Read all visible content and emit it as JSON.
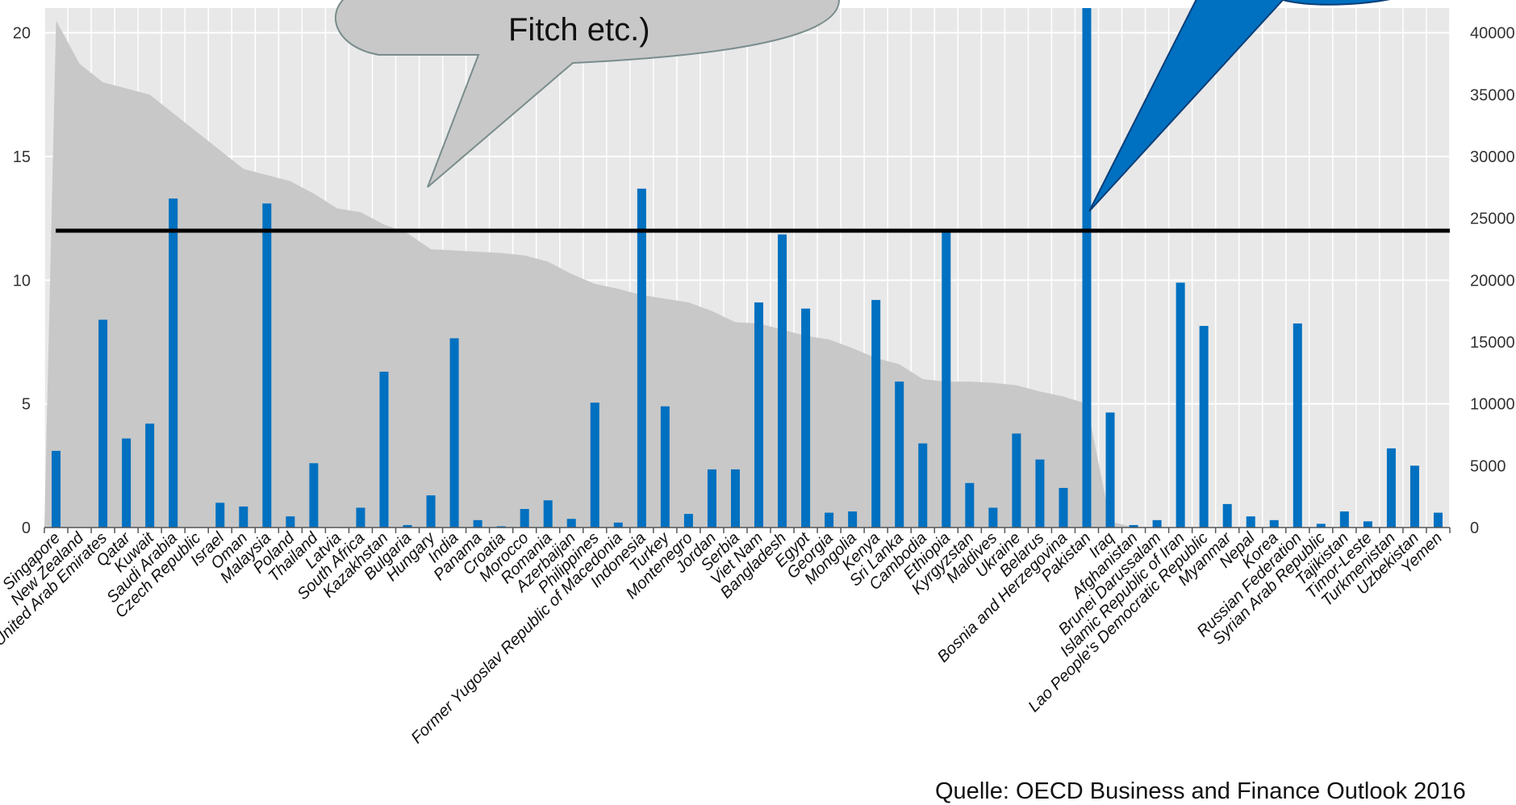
{
  "chart_data": {
    "type": "bar",
    "left_axis": {
      "ticks": [
        0,
        5,
        10,
        15,
        20
      ],
      "ylim": [
        0,
        21
      ]
    },
    "right_axis": {
      "ticks": [
        0,
        5000,
        10000,
        15000,
        20000,
        25000,
        30000,
        35000,
        40000
      ],
      "ylim": [
        0,
        42000
      ]
    },
    "threshold_line": 12,
    "categories": [
      "Singapore",
      "New Zealand",
      "United Arab Emirates",
      "Qatar",
      "Kuwait",
      "Saudi Arabia",
      "Czech Republic",
      "Israel",
      "Oman",
      "Malaysia",
      "Poland",
      "Thailand",
      "Latvia",
      "South Africa",
      "Kazakhstan",
      "Bulgaria",
      "Hungary",
      "India",
      "Panama",
      "Croatia",
      "Morocco",
      "Romania",
      "Azerbaijan",
      "Philippines",
      "Former Yugoslav Republic of Macedonia",
      "Indonesia",
      "Turkey",
      "Montenegro",
      "Jordan",
      "Serbia",
      "Viet Nam",
      "Bangladesh",
      "Egypt",
      "Georgia",
      "Mongolia",
      "Kenya",
      "Sri Lanka",
      "Cambodia",
      "Ethiopia",
      "Kyrgyzstan",
      "Maldives",
      "Ukraine",
      "Belarus",
      "Bosnia and Herzegovina",
      "Pakistan",
      "Iraq",
      "Afghanistan",
      "Brunei Darussalam",
      "Islamic Republic of Iran",
      "Lao People's Democratic Republic",
      "Myanmar",
      "Nepal",
      "Korea",
      "Russian Federation",
      "Syrian Arab Republic",
      "Tajikistan",
      "Timor-Leste",
      "Turkmenistan",
      "Uzbekistan",
      "Yemen"
    ],
    "series": [
      {
        "axis": "left",
        "color": "#0070C0",
        "values": [
          3.1,
          0.0,
          8.4,
          3.6,
          4.2,
          13.3,
          0.0,
          1.0,
          0.85,
          13.1,
          0.45,
          2.6,
          0.0,
          0.8,
          6.3,
          0.1,
          1.3,
          7.65,
          0.3,
          0.05,
          0.75,
          1.1,
          0.35,
          5.05,
          0.2,
          13.7,
          4.9,
          0.55,
          2.35,
          2.35,
          9.1,
          11.85,
          8.85,
          0.6,
          0.65,
          9.2,
          5.9,
          3.4,
          12.0,
          1.8,
          0.8,
          3.8,
          2.75,
          1.6,
          21.0,
          4.65,
          0.1,
          0.3,
          9.9,
          8.15,
          0.95,
          0.45,
          0.3,
          8.25,
          0.15,
          0.65,
          0.25,
          3.2,
          2.5,
          0.6
        ]
      },
      {
        "axis": "right",
        "type": "area",
        "color": "#C8C8C8",
        "values": [
          41000,
          37500,
          36000,
          35500,
          35000,
          33500,
          32000,
          30500,
          29000,
          28500,
          28000,
          27000,
          25800,
          25500,
          24500,
          23800,
          22500,
          22400,
          22300,
          22200,
          22000,
          21500,
          20500,
          19700,
          19300,
          18800,
          18500,
          18200,
          17500,
          16600,
          16500,
          16000,
          15500,
          15200,
          14500,
          13700,
          13200,
          12000,
          11800,
          11800,
          11700,
          11500,
          11000,
          10600,
          10000,
          500,
          0,
          0,
          0,
          0,
          0,
          0,
          0,
          0,
          0,
          0,
          0,
          0,
          0,
          0
        ]
      }
    ]
  },
  "bubble_grey": {
    "text": "Fitch etc.)",
    "fill": "#C8C8C8"
  },
  "bubble_blue": {
    "fill": "#0070C0"
  },
  "source": "Quelle: OECD Business and Finance Outlook 2016"
}
